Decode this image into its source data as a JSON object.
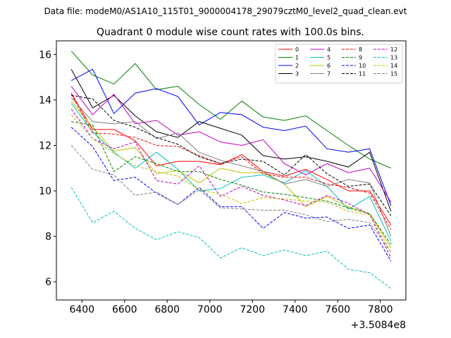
{
  "header": {
    "file_label": "Data file: modeM0/AS1A10_115T01_9000004178_29079cztM0_level2_quad_clean.evt"
  },
  "chart_data": {
    "type": "line",
    "title": "Quadrant 0 module wise count rates with 100.0s bins.",
    "xlabel": "",
    "ylabel": "",
    "x_offset_label": "+3.5084e8",
    "x": [
      6350,
      6450,
      6550,
      6650,
      6750,
      6850,
      6950,
      7050,
      7150,
      7250,
      7350,
      7450,
      7550,
      7650,
      7750,
      7850
    ],
    "xlim": [
      6280,
      7920
    ],
    "ylim": [
      5.2,
      16.6
    ],
    "xticks": [
      6400,
      6600,
      6800,
      7000,
      7200,
      7400,
      7600,
      7800
    ],
    "xtick_labels": [
      "6400",
      "6600",
      "6800",
      "7000",
      "7200",
      "7400",
      "7600",
      "7800"
    ],
    "yticks": [
      6,
      8,
      10,
      12,
      14,
      16
    ],
    "ytick_labels": [
      "6",
      "8",
      "10",
      "12",
      "14",
      "16"
    ],
    "legend_position": "upper-right",
    "series": [
      {
        "name": "0",
        "color": "#ff0000",
        "dash": "solid",
        "values": [
          14.3,
          12.7,
          12.7,
          12.2,
          11.1,
          11.3,
          11.3,
          11.15,
          11.6,
          10.85,
          10.65,
          10.95,
          10.5,
          10.0,
          10.0,
          8.5
        ]
      },
      {
        "name": "1",
        "color": "#008000",
        "dash": "solid",
        "values": [
          16.15,
          15.1,
          14.7,
          15.6,
          14.45,
          14.6,
          13.8,
          13.15,
          13.95,
          13.25,
          13.1,
          13.3,
          12.65,
          12.0,
          11.4,
          11.0
        ]
      },
      {
        "name": "2",
        "color": "#0000ff",
        "dash": "solid",
        "values": [
          14.85,
          15.35,
          13.4,
          14.3,
          14.5,
          14.15,
          12.9,
          13.45,
          13.35,
          12.8,
          12.65,
          12.85,
          11.85,
          11.7,
          11.85,
          9.35
        ]
      },
      {
        "name": "3",
        "color": "#000000",
        "dash": "solid",
        "values": [
          15.35,
          13.65,
          14.2,
          13.3,
          12.6,
          12.35,
          13.05,
          12.75,
          12.45,
          11.55,
          11.4,
          11.5,
          11.3,
          11.05,
          11.7,
          9.1
        ]
      },
      {
        "name": "4",
        "color": "#c000c0",
        "dash": "solid",
        "values": [
          14.6,
          13.35,
          14.25,
          12.95,
          13.1,
          12.45,
          12.6,
          12.15,
          12.0,
          12.25,
          11.2,
          10.7,
          11.2,
          10.8,
          11.0,
          9.5
        ]
      },
      {
        "name": "5",
        "color": "#00c0c0",
        "dash": "solid",
        "values": [
          13.85,
          12.6,
          11.7,
          11.0,
          11.7,
          10.95,
          10.0,
          10.1,
          10.6,
          10.7,
          10.35,
          10.9,
          10.2,
          9.2,
          9.75,
          7.8
        ]
      },
      {
        "name": "6",
        "color": "#c0c000",
        "dash": "solid",
        "values": [
          13.95,
          12.8,
          11.75,
          11.9,
          10.75,
          10.9,
          10.35,
          11.0,
          10.8,
          10.8,
          10.3,
          9.3,
          9.75,
          9.3,
          9.0,
          7.5
        ]
      },
      {
        "name": "7",
        "color": "#808080",
        "dash": "solid",
        "values": [
          14.1,
          13.05,
          12.95,
          13.05,
          12.3,
          12.55,
          11.7,
          11.35,
          11.1,
          10.85,
          10.3,
          10.5,
          10.2,
          10.5,
          10.35,
          8.0
        ]
      },
      {
        "name": "8",
        "color": "#ff0000",
        "dash": "dashed",
        "values": [
          14.25,
          12.55,
          12.5,
          12.35,
          12.0,
          11.95,
          11.55,
          11.2,
          11.5,
          10.75,
          10.6,
          10.6,
          10.3,
          10.15,
          9.9,
          8.3
        ]
      },
      {
        "name": "9",
        "color": "#008000",
        "dash": "dashed",
        "values": [
          13.05,
          12.9,
          10.85,
          11.5,
          11.2,
          10.85,
          10.85,
          10.5,
          10.25,
          9.95,
          9.85,
          9.7,
          9.55,
          9.25,
          9.0,
          7.65
        ]
      },
      {
        "name": "10",
        "color": "#0000ff",
        "dash": "dashed",
        "values": [
          12.8,
          11.95,
          10.45,
          10.6,
          9.9,
          9.4,
          10.15,
          9.3,
          9.3,
          8.35,
          9.05,
          8.8,
          8.85,
          8.35,
          8.5,
          6.9
        ]
      },
      {
        "name": "11",
        "color": "#000000",
        "dash": "dashed",
        "values": [
          14.2,
          14.05,
          13.1,
          12.8,
          12.35,
          12.05,
          11.5,
          11.2,
          11.4,
          11.3,
          10.7,
          11.6,
          10.75,
          10.2,
          10.3,
          8.9
        ]
      },
      {
        "name": "12",
        "color": "#c000c0",
        "dash": "dashed",
        "values": [
          13.6,
          12.3,
          11.85,
          12.15,
          10.45,
          10.3,
          11.1,
          9.75,
          10.2,
          9.8,
          9.6,
          9.35,
          9.8,
          9.45,
          8.95,
          7.05
        ]
      },
      {
        "name": "13",
        "color": "#00c0c0",
        "dash": "dashed",
        "values": [
          10.15,
          8.6,
          9.1,
          8.35,
          7.85,
          8.2,
          7.95,
          7.05,
          7.5,
          7.15,
          7.4,
          7.15,
          7.35,
          6.55,
          6.4,
          5.7
        ]
      },
      {
        "name": "14",
        "color": "#c0c000",
        "dash": "dashed",
        "values": [
          13.35,
          12.3,
          11.65,
          11.1,
          10.85,
          10.65,
          10.05,
          9.85,
          9.45,
          9.7,
          9.65,
          9.55,
          9.5,
          9.1,
          8.95,
          7.3
        ]
      },
      {
        "name": "15",
        "color": "#808080",
        "dash": "dashed",
        "values": [
          12.0,
          10.95,
          10.7,
          9.8,
          9.95,
          9.4,
          10.05,
          9.25,
          9.2,
          9.15,
          9.15,
          8.95,
          8.65,
          8.75,
          8.6,
          7.3
        ]
      }
    ]
  }
}
